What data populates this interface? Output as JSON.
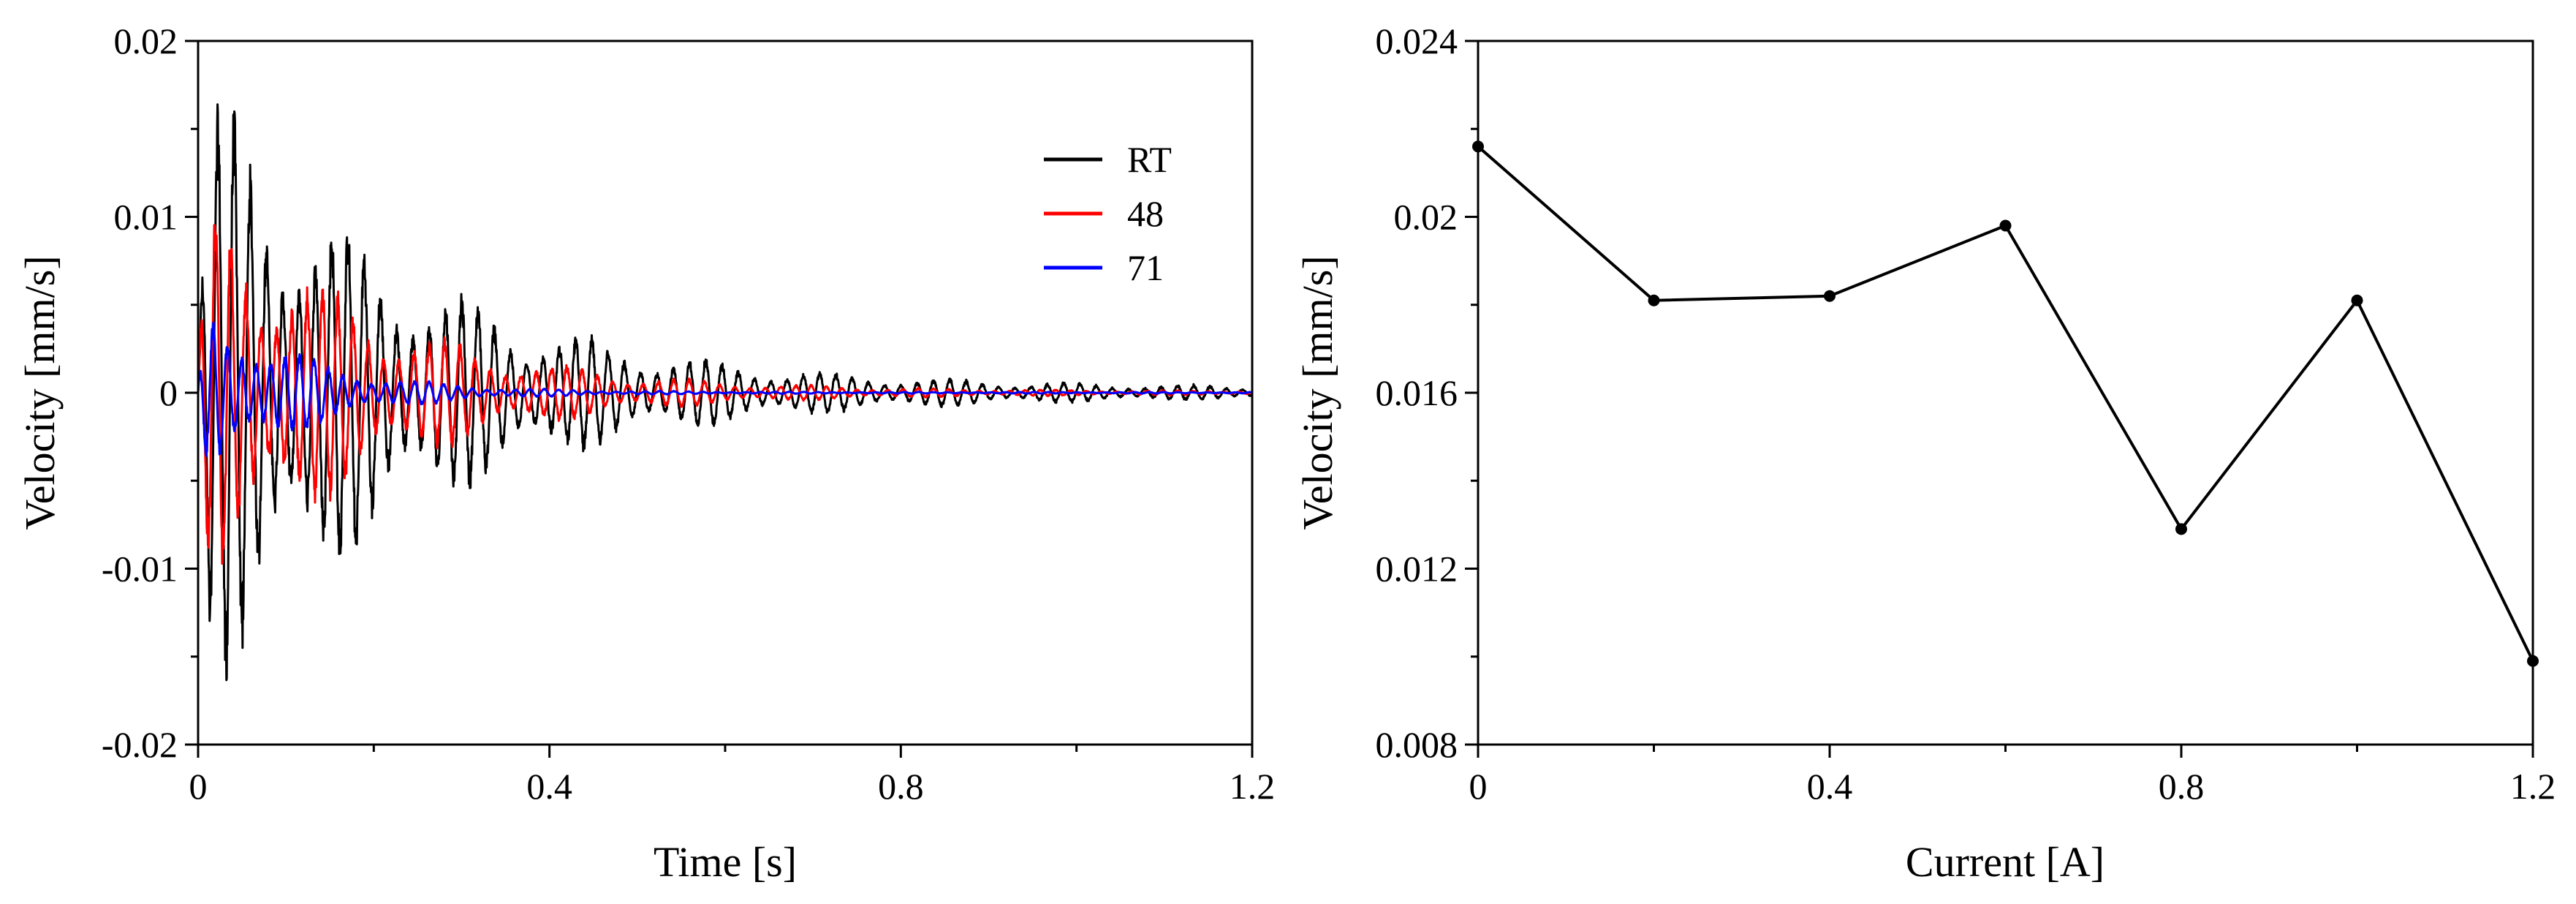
{
  "chart_data": [
    {
      "type": "line",
      "xlabel": "Time [s]",
      "ylabel": "Velocity [mm/s]",
      "xlim": [
        0,
        1.2
      ],
      "ylim": [
        -0.02,
        0.02
      ],
      "x_ticks": [
        0,
        0.4,
        0.8,
        1.2
      ],
      "x_tick_labels": [
        "0",
        "0.4",
        "0.8",
        "1.2"
      ],
      "x_minor_ticks": [
        0.2,
        0.6,
        1.0
      ],
      "y_ticks": [
        -0.02,
        -0.01,
        0,
        0.01,
        0.02
      ],
      "y_tick_labels": [
        "-0.02",
        "-0.01",
        "0",
        "0.01",
        "0.02"
      ],
      "y_minor_ticks": [
        -0.015,
        -0.005,
        0.005,
        0.015
      ],
      "grid": false,
      "legend_position": "top-right",
      "series": [
        {
          "name": "RT",
          "color": "#000000",
          "peak_amplitude": 0.0172,
          "envelope_end_amplitude": 0.0003,
          "end_time": 1.2
        },
        {
          "name": "48",
          "color": "#ff0000",
          "peak_amplitude": 0.0118,
          "envelope_end_amplitude": 0.0001,
          "end_time": 1.2
        },
        {
          "name": "71",
          "color": "#0000ff",
          "peak_amplitude": 0.0058,
          "envelope_end_amplitude": 5e-05,
          "end_time": 1.2
        }
      ]
    },
    {
      "type": "line",
      "xlabel": "Current [A]",
      "ylabel": "Velocity [mm/s]",
      "xlim": [
        0,
        1.2
      ],
      "ylim": [
        0.008,
        0.024
      ],
      "x_ticks": [
        0,
        0.4,
        0.8,
        1.2
      ],
      "x_tick_labels": [
        "0",
        "0.4",
        "0.8",
        "1.2"
      ],
      "x_minor_ticks": [
        0.2,
        0.6,
        1.0
      ],
      "y_ticks": [
        0.008,
        0.012,
        0.016,
        0.02,
        0.024
      ],
      "y_tick_labels": [
        "0.008",
        "0.012",
        "0.016",
        "0.02",
        "0.024"
      ],
      "y_minor_ticks": [
        0.01,
        0.014,
        0.018,
        0.022
      ],
      "grid": false,
      "series": [
        {
          "color": "#000000",
          "x": [
            0,
            0.2,
            0.4,
            0.6,
            0.8,
            1.0,
            1.2
          ],
          "y": [
            0.0216,
            0.0181,
            0.0182,
            0.0198,
            0.0129,
            0.0181,
            0.0099
          ]
        }
      ]
    }
  ]
}
